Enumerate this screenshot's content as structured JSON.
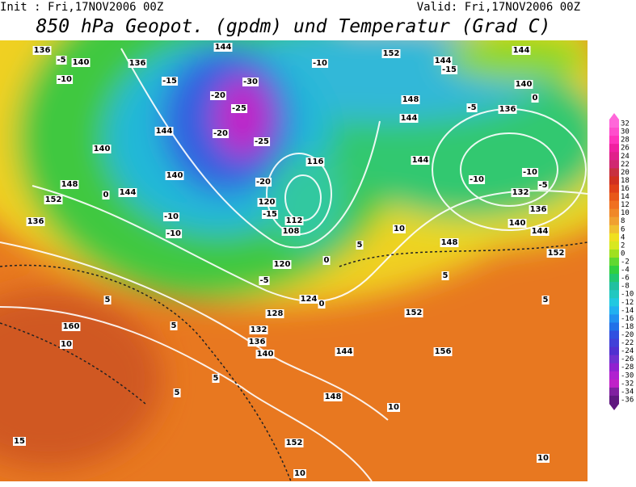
{
  "header": {
    "init": "Init : Fri,17NOV2006 00Z",
    "valid": "Valid: Fri,17NOV2006 00Z",
    "title": "850 hPa Geopot. (gpdm) und Temperatur (Grad C)"
  },
  "colorbar": {
    "labels": [
      "32",
      "30",
      "28",
      "26",
      "24",
      "22",
      "20",
      "18",
      "16",
      "14",
      "12",
      "10",
      "8",
      "6",
      "4",
      "2",
      "0",
      "-2",
      "-4",
      "-6",
      "-8",
      "-10",
      "-12",
      "-14",
      "-16",
      "-18",
      "-20",
      "-22",
      "-24",
      "-26",
      "-28",
      "-30",
      "-32",
      "-34",
      "-36"
    ],
    "colors": [
      "#ff66d9",
      "#ff4dcc",
      "#ff33bb",
      "#f01fa0",
      "#e0208a",
      "#d02870",
      "#c83040",
      "#d03020",
      "#e04018",
      "#e85818",
      "#f07020",
      "#f08828",
      "#f0a030",
      "#f0c030",
      "#f0e020",
      "#d8e820",
      "#a0e020",
      "#60d830",
      "#30d040",
      "#20c870",
      "#20c0a0",
      "#20c8c0",
      "#20c8e0",
      "#20b0f0",
      "#2090f0",
      "#2070e8",
      "#3050e0",
      "#4040d8",
      "#5030d0",
      "#7030d0",
      "#9020d0",
      "#b020d0",
      "#c020c8",
      "#8020a0",
      "#601880"
    ]
  },
  "contour_labels": [
    "136",
    "140",
    "136",
    "144",
    "152",
    "144",
    "144",
    "140",
    "136",
    "132",
    "136",
    "140",
    "144",
    "152",
    "148",
    "152",
    "156",
    "148",
    "152",
    "144",
    "140",
    "136",
    "132",
    "128",
    "124",
    "120",
    "112",
    "108",
    "120",
    "148",
    "152",
    "136",
    "160",
    "144",
    "140",
    "140",
    "144",
    "116",
    "148",
    "144",
    "144",
    "-5",
    "-10",
    "-15",
    "10",
    "15",
    "5",
    "5",
    "5",
    "5",
    "0",
    "-10",
    "-10",
    "-5",
    "0",
    "0",
    "5",
    "10",
    "5",
    "5",
    "10",
    "10",
    "10",
    "0",
    "-5",
    "-10",
    "-10",
    "-5",
    "-10",
    "-15",
    "-20",
    "-25",
    "-30",
    "-20",
    "-25",
    "-20",
    "-15"
  ]
}
